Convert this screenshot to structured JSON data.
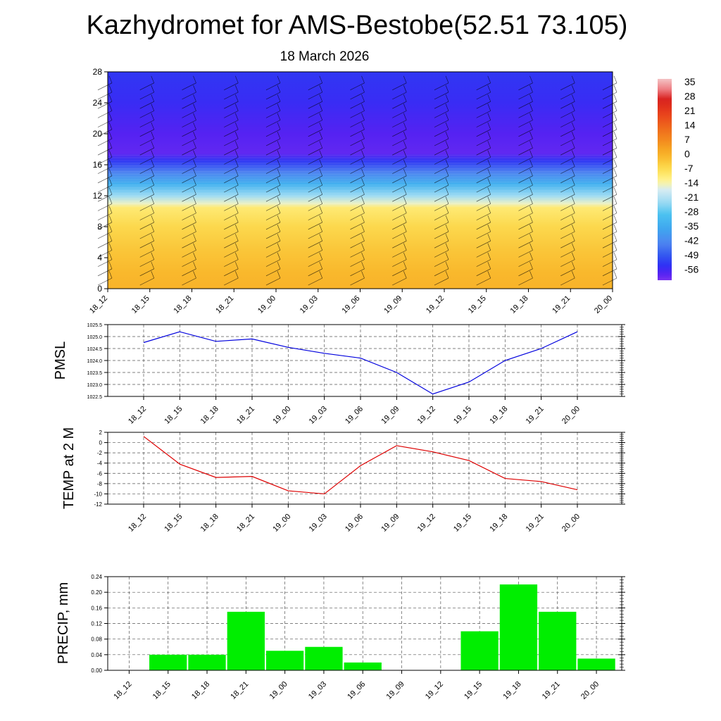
{
  "title": "Kazhydromet for AMS-Bestobe(52.51 73.105)",
  "subtitle": "18 March 2026",
  "colors": {
    "pmsl_line": "#0000dd",
    "temp_line": "#dd0000",
    "precip_bar": "#00ee00",
    "grid": "#555555"
  },
  "chart_data": [
    {
      "type": "heatmap",
      "name": "vertical-temperature-wind-section",
      "x_ticks": [
        "18_12",
        "18_15",
        "18_18",
        "18_21",
        "19_00",
        "19_03",
        "19_06",
        "19_09",
        "19_12",
        "19_15",
        "19_18",
        "19_21",
        "20_00"
      ],
      "y_ticks": [
        "0",
        "4",
        "8",
        "12",
        "16",
        "20",
        "24",
        "28"
      ],
      "ylim": [
        0,
        28
      ],
      "colorbar": {
        "labels": [
          "35",
          "28",
          "21",
          "14",
          "7",
          "0",
          "-7",
          "-14",
          "-21",
          "-28",
          "-35",
          "-42",
          "-49",
          "-56"
        ],
        "range": [
          -60,
          38
        ]
      },
      "level_profile": [
        {
          "level": 0,
          "value": 1
        },
        {
          "level": 2,
          "value": 0
        },
        {
          "level": 5,
          "value": -2
        },
        {
          "level": 8,
          "value": -5
        },
        {
          "level": 10.5,
          "value": -9
        },
        {
          "level": 11,
          "value": -14
        },
        {
          "level": 12,
          "value": -22
        },
        {
          "level": 13.5,
          "value": -32
        },
        {
          "level": 15,
          "value": -42
        },
        {
          "level": 16.5,
          "value": -52
        },
        {
          "level": 17.5,
          "value": -58
        },
        {
          "level": 20,
          "value": -57
        },
        {
          "level": 24,
          "value": -54
        },
        {
          "level": 28,
          "value": -52
        }
      ]
    },
    {
      "type": "line",
      "name": "pmsl",
      "ylabel": "PMSL",
      "categories": [
        "18_12",
        "18_15",
        "18_18",
        "18_21",
        "19_00",
        "19_03",
        "19_06",
        "19_09",
        "19_12",
        "19_15",
        "19_18",
        "19_21",
        "20_00"
      ],
      "values": [
        1024.75,
        1025.2,
        1024.8,
        1024.9,
        1024.55,
        1024.3,
        1024.1,
        1023.5,
        1022.6,
        1023.1,
        1024.0,
        1024.5,
        1025.2
      ],
      "ylim": [
        1022.5,
        1025.5
      ],
      "y_ticks": [
        "1022.5",
        "1023.0",
        "1023.5",
        "1024.0",
        "1024.5",
        "1025.0",
        "1025.5"
      ]
    },
    {
      "type": "line",
      "name": "temp-2m",
      "ylabel": "TEMP at 2 M",
      "categories": [
        "18_12",
        "18_15",
        "18_18",
        "18_21",
        "19_00",
        "19_03",
        "19_06",
        "19_09",
        "19_12",
        "19_15",
        "19_18",
        "19_21",
        "20_00"
      ],
      "values": [
        1.2,
        -4.2,
        -6.8,
        -6.6,
        -9.4,
        -10.0,
        -4.5,
        -0.6,
        -1.8,
        -3.5,
        -7.0,
        -7.6,
        -9.2
      ],
      "ylim": [
        -12,
        2
      ],
      "y_ticks": [
        "2",
        "0",
        "-2",
        "-4",
        "-6",
        "-8",
        "-10",
        "-12"
      ]
    },
    {
      "type": "bar",
      "name": "precip",
      "ylabel": "PRECIP, mm",
      "categories": [
        "18_12",
        "18_15",
        "18_18",
        "18_21",
        "19_00",
        "19_03",
        "19_06",
        "19_09",
        "19_12",
        "19_15",
        "19_18",
        "19_21",
        "20_00"
      ],
      "values": [
        0,
        0.04,
        0.04,
        0.15,
        0.05,
        0.06,
        0.02,
        0,
        0,
        0.1,
        0.22,
        0.15,
        0.03
      ],
      "ylim": [
        0,
        0.24
      ],
      "y_ticks": [
        "0.24",
        "0.20",
        "0.16",
        "0.12",
        "0.08",
        "0.04",
        "0.00"
      ]
    }
  ]
}
